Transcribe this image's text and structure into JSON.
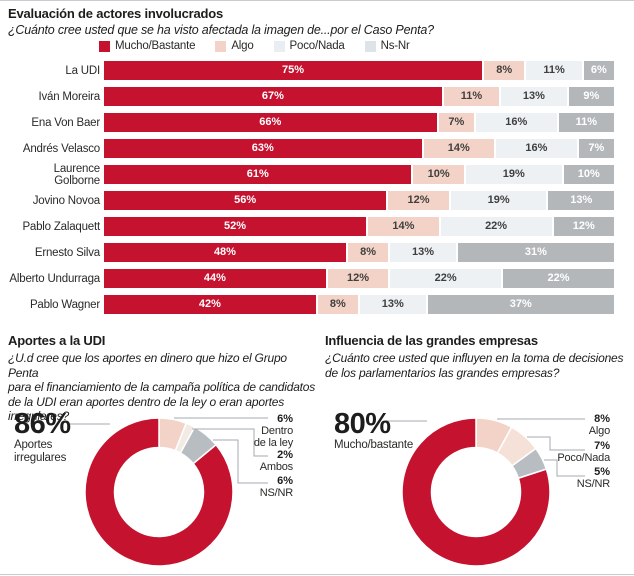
{
  "legend": {
    "items": [
      {
        "label": "Mucho/Bastante",
        "color": "#c4122f"
      },
      {
        "label": "Algo",
        "color": "#f3d3c8"
      },
      {
        "label": "Poco/Nada",
        "color": "#e9eef2"
      },
      {
        "label": "Ns-Nr",
        "color": "#dde3e9"
      }
    ]
  },
  "chart_data": [
    {
      "type": "bar",
      "stacked": true,
      "orientation": "horizontal",
      "title": "Evaluación de actores involucrados",
      "subtitle": "¿Cuánto cree usted que se ha visto afectada la imagen de...por el Caso Penta?",
      "unit": "%",
      "xlim": [
        0,
        100
      ],
      "categories": [
        "La UDI",
        "Iván Moreira",
        "Ena Von Baer",
        "Andrés Velasco",
        "Laurence Golborne",
        "Jovino Novoa",
        "Pablo Zalaquett",
        "Ernesto Silva",
        "Alberto Undurraga",
        "Pablo Wagner"
      ],
      "series": [
        {
          "name": "Mucho/Bastante",
          "color": "#c4122f",
          "text_color": "#ffffff",
          "values": [
            75,
            67,
            66,
            63,
            61,
            56,
            52,
            48,
            44,
            42
          ]
        },
        {
          "name": "Algo",
          "color": "#f3d3c8",
          "text_color": "#3f3f3e",
          "values": [
            8,
            11,
            7,
            14,
            10,
            12,
            14,
            8,
            12,
            8
          ]
        },
        {
          "name": "Poco/Nada",
          "color": "#edf1f4",
          "text_color": "#3f3f3e",
          "values": [
            11,
            13,
            16,
            16,
            19,
            19,
            22,
            13,
            22,
            13
          ]
        },
        {
          "name": "Ns-Nr",
          "color": "#b3b7ba",
          "text_color": "#ffffff",
          "values": [
            6,
            9,
            11,
            7,
            10,
            13,
            12,
            31,
            22,
            37
          ]
        }
      ]
    },
    {
      "type": "pie",
      "donut": true,
      "title": "Aportes a la UDI",
      "question": [
        "¿U.d cree que los aportes en dinero que hizo el Grupo Penta",
        "para el financiamiento de la campaña política de candidatos",
        "de la UDI eran aportes dentro de la ley o eran aportes",
        "irregulares?"
      ],
      "big": {
        "value": "86%",
        "label_lines": [
          "Aportes",
          "irregulares"
        ]
      },
      "slices": [
        {
          "label": "Dentro de la ley",
          "value": 6,
          "color": "#f3d3c8"
        },
        {
          "label": "Ambos",
          "value": 2,
          "color": "#f2ebe3"
        },
        {
          "label": "NS/NR",
          "value": 6,
          "color": "#b8bdc2"
        },
        {
          "label": "Aportes irregulares",
          "value": 86,
          "color": "#c4122f"
        }
      ],
      "callouts": [
        {
          "value": "6%",
          "lines": [
            "Dentro",
            "de la ley"
          ]
        },
        {
          "value": "2%",
          "lines": [
            "Ambos"
          ]
        },
        {
          "value": "6%",
          "lines": [
            "NS/NR"
          ]
        }
      ]
    },
    {
      "type": "pie",
      "donut": true,
      "title": "Influencia de las grandes empresas",
      "question": [
        "¿Cuánto cree usted que influyen en la toma de decisiones",
        "de los parlamentarios las grandes empresas?"
      ],
      "big": {
        "value": "80%",
        "label_lines": [
          "Mucho/bastante"
        ]
      },
      "slices": [
        {
          "label": "Algo",
          "value": 8,
          "color": "#f3d3c8"
        },
        {
          "label": "Poco/Nada",
          "value": 7,
          "color": "#f6e1d8"
        },
        {
          "label": "NS/NR",
          "value": 5,
          "color": "#b8bdc2"
        },
        {
          "label": "Mucho/bastante",
          "value": 80,
          "color": "#c4122f"
        }
      ],
      "callouts": [
        {
          "value": "8%",
          "lines": [
            "Algo"
          ]
        },
        {
          "value": "7%",
          "lines": [
            "Poco/Nada"
          ]
        },
        {
          "value": "5%",
          "lines": [
            "NS/NR"
          ]
        }
      ]
    }
  ]
}
